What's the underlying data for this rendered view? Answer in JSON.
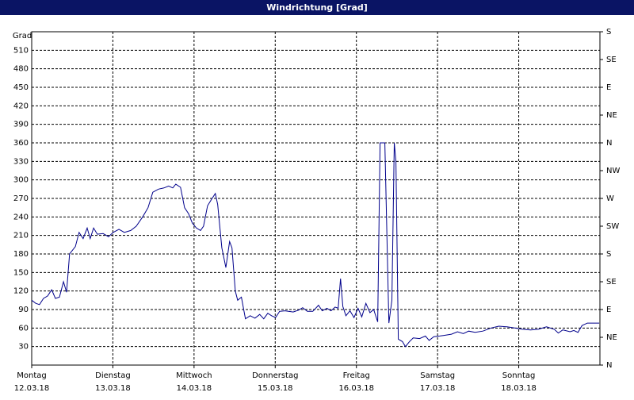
{
  "chart_data": {
    "type": "line",
    "title": "Windrichtung [Grad]",
    "ylabel": "Grad",
    "x": [
      0,
      1.2,
      2.3,
      3.5,
      4.7,
      5.9,
      7.0,
      8.2,
      9.4,
      10.3,
      11.2,
      12.9,
      14.0,
      15.2,
      16.4,
      17.3,
      18.3,
      19.4,
      21.1,
      22.7,
      24.1,
      25.8,
      27.4,
      29.3,
      30.9,
      32.8,
      34.4,
      35.8,
      37.5,
      39.1,
      40.5,
      41.7,
      42.6,
      44.0,
      45.2,
      46.4,
      47.5,
      48.7,
      49.9,
      50.8,
      52.0,
      53.1,
      54.3,
      55.0,
      56.2,
      57.4,
      58.5,
      59.2,
      60.2,
      60.9,
      62.0,
      63.2,
      64.6,
      66.0,
      67.4,
      68.6,
      69.8,
      70.9,
      72.1,
      73.3,
      74.9,
      77.3,
      78.9,
      80.1,
      81.5,
      83.1,
      84.8,
      85.9,
      87.3,
      88.5,
      89.7,
      90.6,
      91.3,
      92.0,
      92.9,
      94.1,
      95.3,
      96.5,
      97.6,
      98.8,
      100.0,
      101.1,
      102.3,
      103.0,
      104.4,
      105.6,
      106.5,
      107.2,
      107.7,
      108.4,
      109.6,
      110.5,
      111.7,
      112.8,
      114.7,
      116.4,
      117.5,
      118.9,
      120.6,
      121.7,
      124.1,
      125.9,
      127.6,
      129.2,
      131.1,
      133.4,
      135.8,
      138.1,
      140.5,
      142.8,
      145.1,
      147.5,
      149.8,
      152.2,
      154.5,
      155.7,
      157.0,
      159.2,
      160.3,
      161.5,
      162.7,
      164.3,
      167.8
    ],
    "series": [
      {
        "color": "#00008b",
        "values": [
          105,
          100,
          98,
          108,
          112,
          122,
          108,
          110,
          135,
          118,
          180,
          192,
          215,
          205,
          222,
          205,
          222,
          212,
          213,
          208,
          215,
          220,
          215,
          218,
          225,
          240,
          255,
          280,
          285,
          287,
          290,
          287,
          293,
          288,
          255,
          245,
          230,
          222,
          218,
          225,
          258,
          268,
          278,
          260,
          190,
          158,
          200,
          190,
          120,
          105,
          110,
          75,
          80,
          76,
          82,
          75,
          84,
          80,
          77,
          87,
          88,
          86,
          89,
          93,
          87,
          87,
          97,
          88,
          92,
          88,
          94,
          92,
          140,
          95,
          80,
          88,
          77,
          92,
          78,
          100,
          85,
          90,
          70,
          360,
          360,
          68,
          105,
          360,
          330,
          42,
          38,
          30,
          38,
          44,
          43,
          47,
          40,
          46,
          47,
          48,
          50,
          54,
          51,
          55,
          53,
          55,
          60,
          63,
          62,
          60,
          58,
          57,
          58,
          62,
          58,
          52,
          57,
          54,
          56,
          53,
          64,
          68,
          68
        ]
      }
    ],
    "xlim": [
      0,
      168
    ],
    "xticks": [
      {
        "value": 0,
        "label": "Montag"
      },
      {
        "value": 24,
        "label": "Dienstag"
      },
      {
        "value": 48,
        "label": "Mittwoch"
      },
      {
        "value": 72,
        "label": "Donnerstag"
      },
      {
        "value": 96,
        "label": "Freitag"
      },
      {
        "value": 120,
        "label": "Samstag"
      },
      {
        "value": 144,
        "label": "Sonntag"
      }
    ],
    "xtick_dates": [
      "12.03.18",
      "13.03.18",
      "14.03.18",
      "15.03.18",
      "16.03.18",
      "17.03.18",
      "18.03.18"
    ],
    "ylim": [
      0,
      540
    ],
    "yticks": [
      30,
      60,
      90,
      120,
      150,
      180,
      210,
      240,
      270,
      300,
      330,
      360,
      390,
      420,
      450,
      480,
      510
    ],
    "y2lim": [
      0,
      540
    ],
    "y2ticks": [
      {
        "value": 540,
        "label": "S"
      },
      {
        "value": 495,
        "label": "SE"
      },
      {
        "value": 450,
        "label": "E"
      },
      {
        "value": 405,
        "label": "NE"
      },
      {
        "value": 360,
        "label": "N"
      },
      {
        "value": 315,
        "label": "NW"
      },
      {
        "value": 270,
        "label": "W"
      },
      {
        "value": 225,
        "label": "SW"
      },
      {
        "value": 180,
        "label": "S"
      },
      {
        "value": 135,
        "label": "SE"
      },
      {
        "value": 90,
        "label": "E"
      },
      {
        "value": 45,
        "label": "NE"
      },
      {
        "value": 0,
        "label": "N"
      }
    ],
    "grid": true
  }
}
